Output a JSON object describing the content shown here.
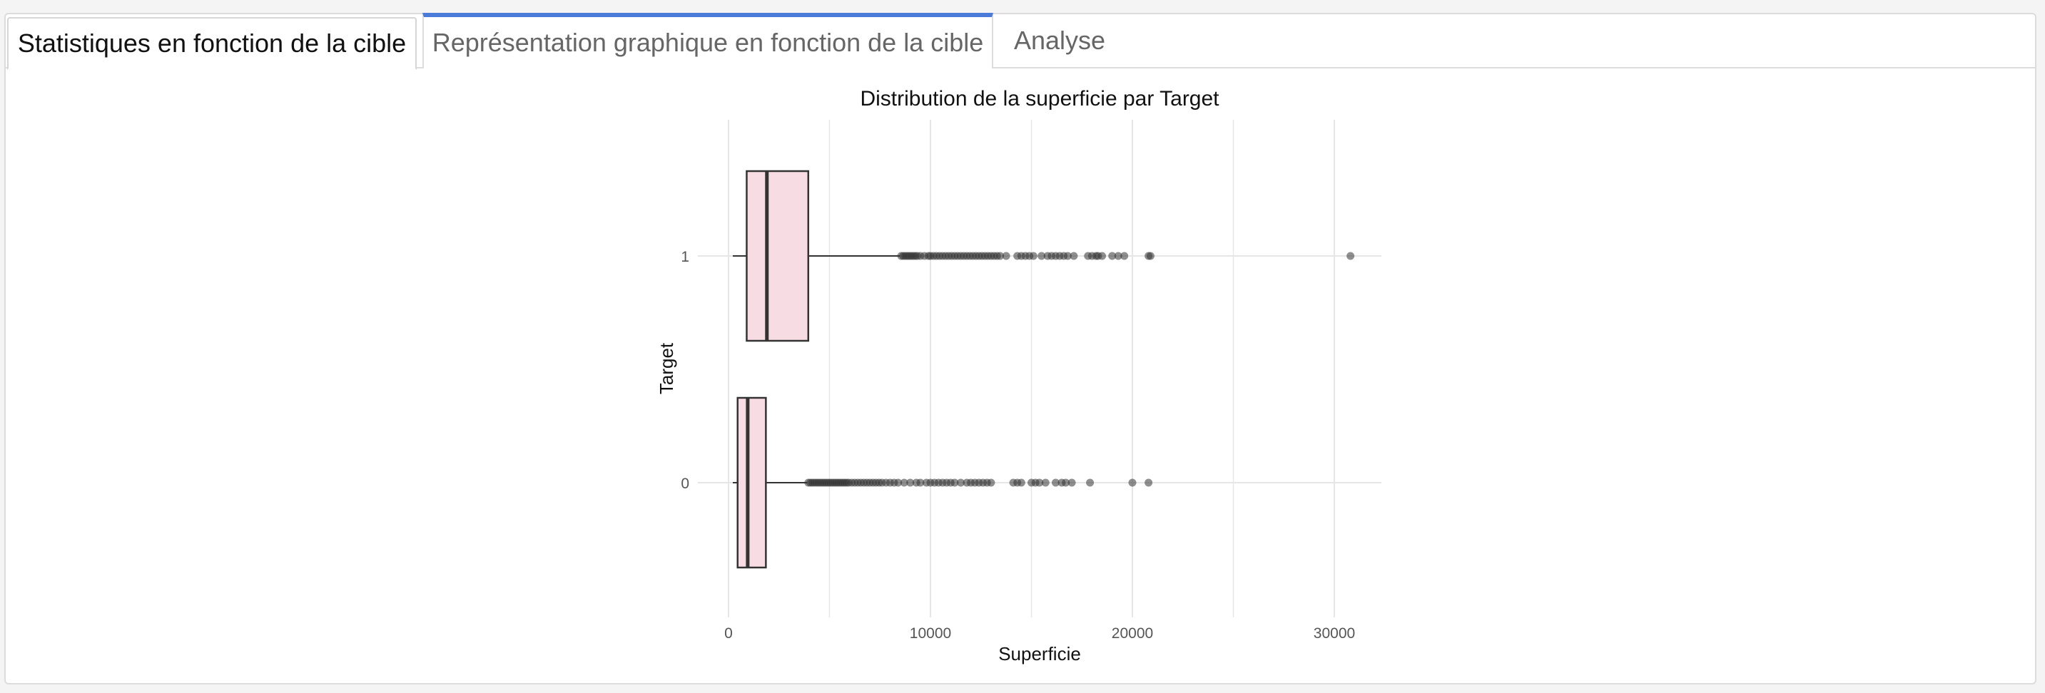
{
  "tabs": [
    {
      "label": "Statistiques en fonction de la cible"
    },
    {
      "label": "Représentation graphique en fonction de la cible"
    },
    {
      "label": "Analyse"
    }
  ],
  "colors": {
    "box_fill": "#f7dde3",
    "box_stroke": "#333333",
    "outlier": "#333333",
    "grid": "#e6e6e6",
    "active_tab_accent": "#4a7bd9"
  },
  "chart_data": {
    "type": "boxplot",
    "orientation": "horizontal",
    "title": "Distribution de la superficie par Target",
    "xlabel": "Superficie",
    "ylabel": "Target",
    "xlim": [
      0,
      32000
    ],
    "x_ticks": [
      0,
      10000,
      20000,
      30000
    ],
    "x_tick_labels": [
      "0",
      "10000",
      "20000",
      "30000"
    ],
    "categories": [
      "1",
      "0"
    ],
    "grid": true,
    "legend": "none",
    "series": [
      {
        "category": "1",
        "whisker_low": 0,
        "q1": 900,
        "median": 1900,
        "q3": 3950,
        "whisker_high": 8500,
        "outliers": [
          8550,
          8650,
          8750,
          8850,
          8950,
          9050,
          9150,
          9250,
          9350,
          9500,
          9700,
          9900,
          10000,
          10150,
          10300,
          10450,
          10600,
          10750,
          10900,
          11050,
          11200,
          11350,
          11500,
          11650,
          11800,
          11950,
          12100,
          12250,
          12400,
          12550,
          12700,
          12850,
          13000,
          13150,
          13300,
          13450,
          13750,
          14300,
          14500,
          14700,
          14900,
          15100,
          15500,
          15800,
          16000,
          16200,
          16400,
          16600,
          16800,
          17100,
          17800,
          18000,
          18200,
          18300,
          18500,
          19000,
          19300,
          19600,
          20800,
          20900,
          30800
        ]
      },
      {
        "category": "0",
        "whisker_low": 0,
        "q1": 450,
        "median": 950,
        "q3": 1850,
        "whisker_high": 3900,
        "outliers": [
          3950,
          4050,
          4150,
          4250,
          4350,
          4450,
          4550,
          4650,
          4750,
          4850,
          4950,
          5050,
          5150,
          5250,
          5350,
          5450,
          5550,
          5650,
          5750,
          5850,
          5950,
          6100,
          6250,
          6400,
          6550,
          6700,
          6850,
          7000,
          7150,
          7300,
          7450,
          7600,
          7800,
          8000,
          8200,
          8400,
          8700,
          9000,
          9300,
          9500,
          9800,
          10000,
          10200,
          10400,
          10600,
          10800,
          11000,
          11200,
          11500,
          11800,
          12000,
          12200,
          12400,
          12600,
          12800,
          13000,
          14100,
          14300,
          14500,
          15000,
          15200,
          15400,
          15700,
          16200,
          16500,
          16700,
          17000,
          17900,
          20000,
          20800
        ]
      }
    ]
  }
}
